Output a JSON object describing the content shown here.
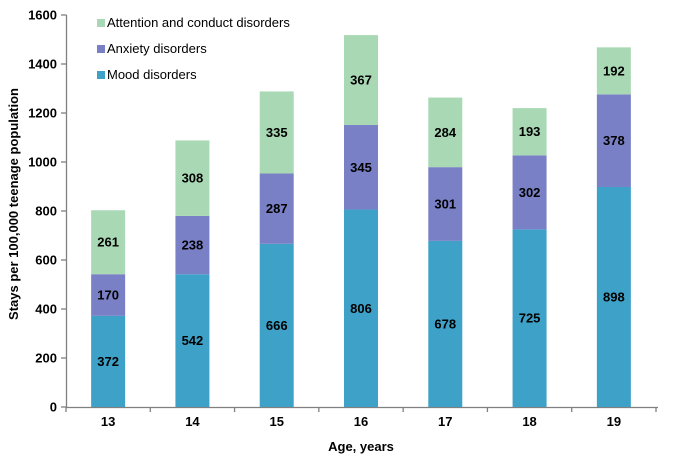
{
  "chart_data": {
    "type": "bar",
    "stacked": true,
    "title": "",
    "xlabel": "Age, years",
    "ylabel": "Stays per 100,000 teenage population",
    "ylim": [
      0,
      1600
    ],
    "ytick_interval": 200,
    "ytick_labels": [
      "0",
      "200",
      "400",
      "600",
      "800",
      "1000",
      "1200",
      "1400",
      "1600"
    ],
    "grid": false,
    "legend_position": "top-left-inside",
    "categories": [
      "13",
      "14",
      "15",
      "16",
      "17",
      "18",
      "19"
    ],
    "series": [
      {
        "name": "Mood disorders",
        "color": "#3EA1C7",
        "values": [
          372,
          542,
          666,
          806,
          678,
          725,
          898
        ]
      },
      {
        "name": "Anxiety disorders",
        "color": "#7A80C6",
        "values": [
          170,
          238,
          287,
          345,
          301,
          302,
          378
        ]
      },
      {
        "name": "Attention and conduct disorders",
        "color": "#A8D9B4",
        "values": [
          261,
          308,
          335,
          367,
          284,
          193,
          192
        ]
      }
    ],
    "totals": [
      803,
      1088,
      1288,
      1518,
      1263,
      1220,
      1468
    ],
    "axis_color": "#808080",
    "data_label_color": "#000000"
  },
  "legend_display_order": [
    2,
    1,
    0
  ]
}
